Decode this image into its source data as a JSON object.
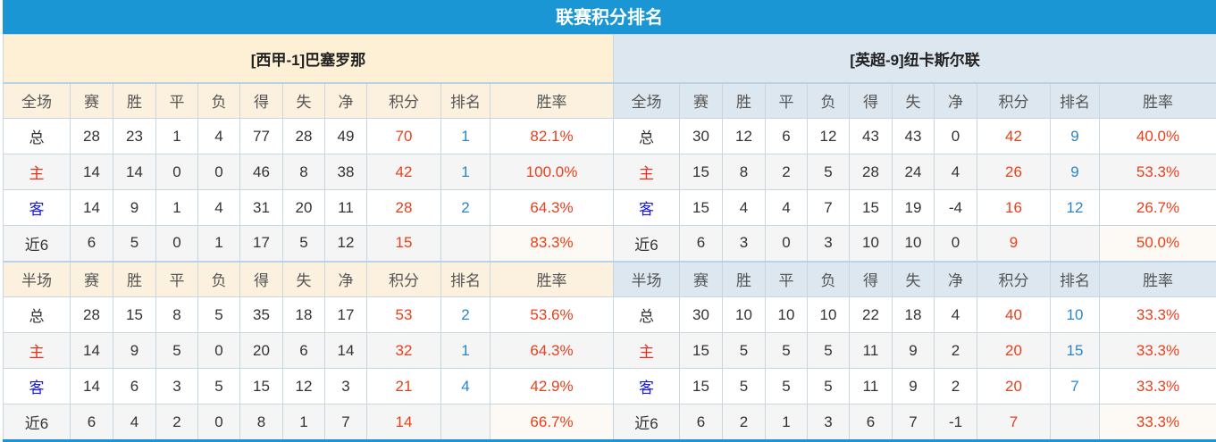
{
  "title": "联赛积分排名",
  "colors": {
    "header_bg": "#1a96d4",
    "points": "#e8401c",
    "rank": "#2a86c8",
    "home_label": "#e8301c",
    "away_label": "#1a1adc"
  },
  "teams": [
    {
      "name": "[西甲-1]巴塞罗那",
      "sections": [
        {
          "label": "全场",
          "columns": [
            "赛",
            "胜",
            "平",
            "负",
            "得",
            "失",
            "净",
            "积分",
            "排名",
            "胜率"
          ],
          "rows": [
            {
              "label": "总",
              "values": [
                "28",
                "23",
                "1",
                "4",
                "77",
                "28",
                "49",
                "70",
                "1",
                "82.1%"
              ]
            },
            {
              "label": "主",
              "values": [
                "14",
                "14",
                "0",
                "0",
                "46",
                "8",
                "38",
                "42",
                "1",
                "100.0%"
              ]
            },
            {
              "label": "客",
              "values": [
                "14",
                "9",
                "1",
                "4",
                "31",
                "20",
                "11",
                "28",
                "2",
                "64.3%"
              ]
            },
            {
              "label": "近6",
              "values": [
                "6",
                "5",
                "0",
                "1",
                "17",
                "5",
                "12",
                "15",
                "",
                "83.3%"
              ]
            }
          ]
        },
        {
          "label": "半场",
          "columns": [
            "赛",
            "胜",
            "平",
            "负",
            "得",
            "失",
            "净",
            "积分",
            "排名",
            "胜率"
          ],
          "rows": [
            {
              "label": "总",
              "values": [
                "28",
                "15",
                "8",
                "5",
                "35",
                "18",
                "17",
                "53",
                "2",
                "53.6%"
              ]
            },
            {
              "label": "主",
              "values": [
                "14",
                "9",
                "5",
                "0",
                "20",
                "6",
                "14",
                "32",
                "1",
                "64.3%"
              ]
            },
            {
              "label": "客",
              "values": [
                "14",
                "6",
                "3",
                "5",
                "15",
                "12",
                "3",
                "21",
                "4",
                "42.9%"
              ]
            },
            {
              "label": "近6",
              "values": [
                "6",
                "4",
                "2",
                "0",
                "8",
                "1",
                "7",
                "14",
                "",
                "66.7%"
              ]
            }
          ]
        }
      ]
    },
    {
      "name": "[英超-9]纽卡斯尔联",
      "sections": [
        {
          "label": "全场",
          "columns": [
            "赛",
            "胜",
            "平",
            "负",
            "得",
            "失",
            "净",
            "积分",
            "排名",
            "胜率"
          ],
          "rows": [
            {
              "label": "总",
              "values": [
                "30",
                "12",
                "6",
                "12",
                "43",
                "43",
                "0",
                "42",
                "9",
                "40.0%"
              ]
            },
            {
              "label": "主",
              "values": [
                "15",
                "8",
                "2",
                "5",
                "28",
                "24",
                "4",
                "26",
                "9",
                "53.3%"
              ]
            },
            {
              "label": "客",
              "values": [
                "15",
                "4",
                "4",
                "7",
                "15",
                "19",
                "-4",
                "16",
                "12",
                "26.7%"
              ]
            },
            {
              "label": "近6",
              "values": [
                "6",
                "3",
                "0",
                "3",
                "10",
                "10",
                "0",
                "9",
                "",
                "50.0%"
              ]
            }
          ]
        },
        {
          "label": "半场",
          "columns": [
            "赛",
            "胜",
            "平",
            "负",
            "得",
            "失",
            "净",
            "积分",
            "排名",
            "胜率"
          ],
          "rows": [
            {
              "label": "总",
              "values": [
                "30",
                "10",
                "10",
                "10",
                "22",
                "18",
                "4",
                "40",
                "10",
                "33.3%"
              ]
            },
            {
              "label": "主",
              "values": [
                "15",
                "5",
                "5",
                "5",
                "11",
                "9",
                "2",
                "20",
                "15",
                "33.3%"
              ]
            },
            {
              "label": "客",
              "values": [
                "15",
                "5",
                "5",
                "5",
                "11",
                "9",
                "2",
                "20",
                "7",
                "33.3%"
              ]
            },
            {
              "label": "近6",
              "values": [
                "6",
                "2",
                "1",
                "3",
                "6",
                "7",
                "-1",
                "7",
                "",
                "33.3%"
              ]
            }
          ]
        }
      ]
    }
  ]
}
